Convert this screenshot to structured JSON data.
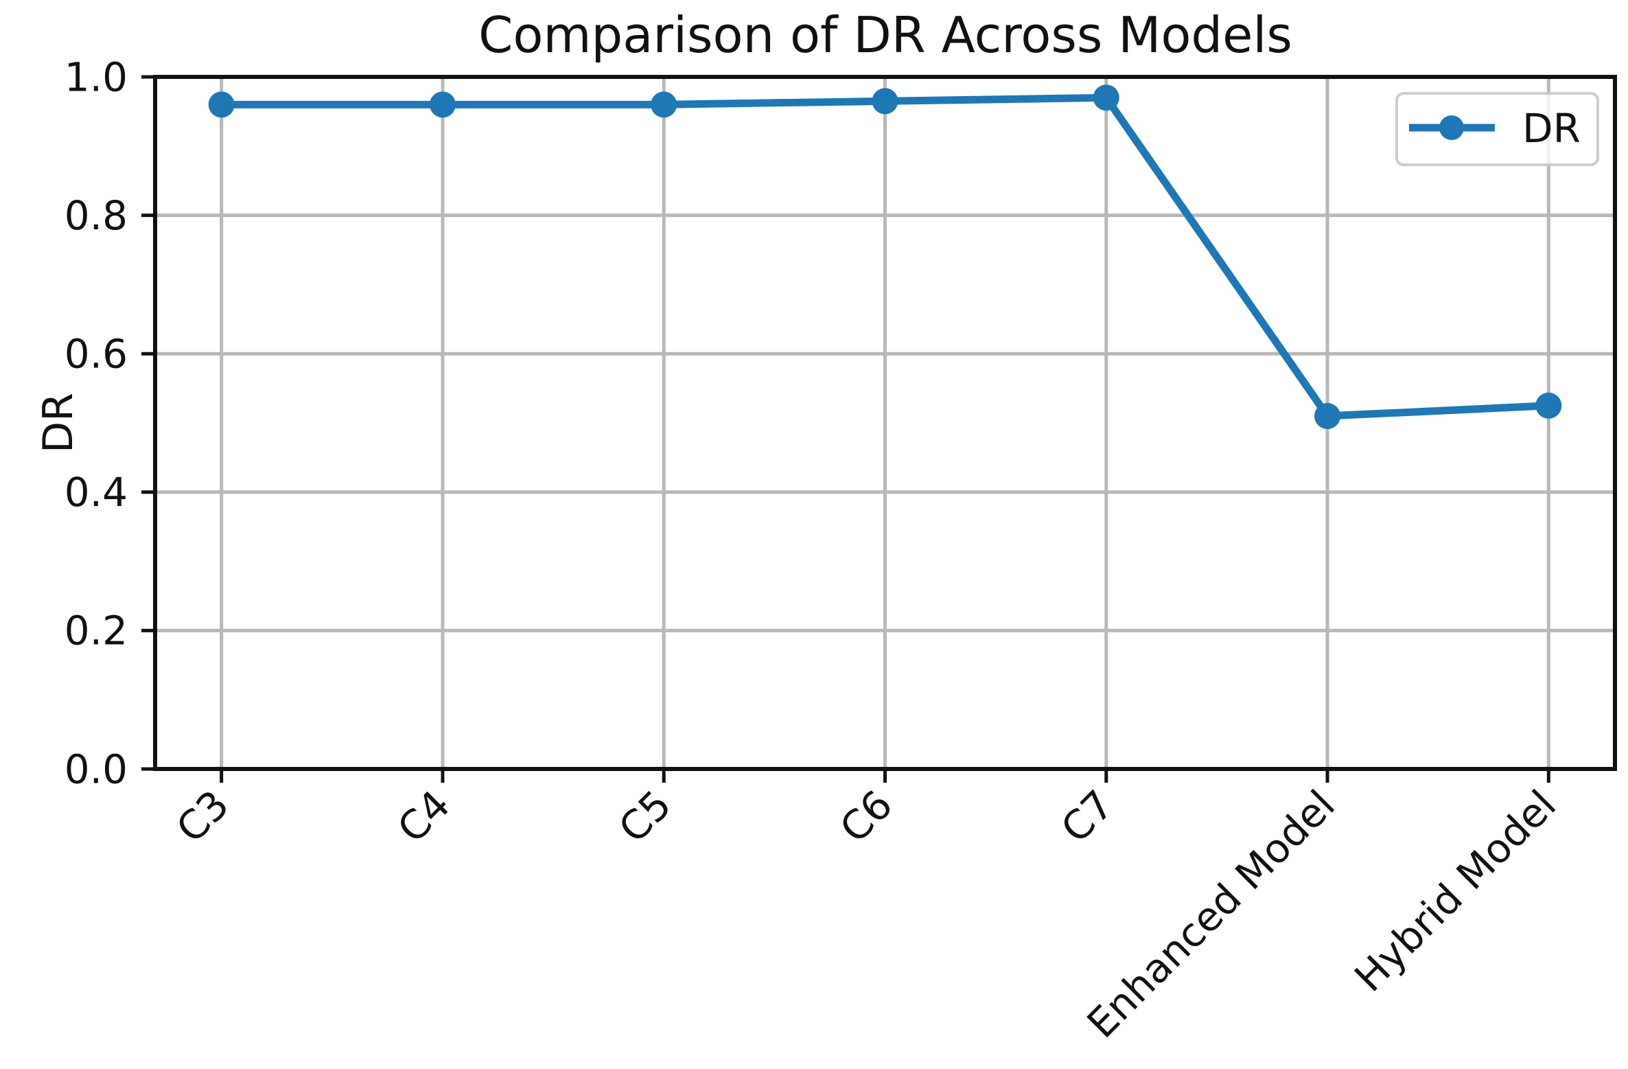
{
  "chart_data": {
    "type": "line",
    "title": "Comparison of DR Across Models",
    "xlabel": "",
    "ylabel": "DR",
    "categories": [
      "C3",
      "C4",
      "C5",
      "C6",
      "C7",
      "Enhanced Model",
      "Hybrid Model"
    ],
    "series": [
      {
        "name": "DR",
        "values": [
          0.96,
          0.96,
          0.96,
          0.965,
          0.97,
          0.51,
          0.525
        ]
      }
    ],
    "ylim": [
      0.0,
      1.0
    ],
    "yticks": [
      0.0,
      0.2,
      0.4,
      0.6,
      0.8,
      1.0
    ],
    "ytick_labels": [
      "0.0",
      "0.2",
      "0.4",
      "0.6",
      "0.8",
      "1.0"
    ],
    "xtick_rotation_deg": 45,
    "grid": true,
    "legend": {
      "position": "upper right",
      "entries": [
        "DR"
      ]
    },
    "colors": {
      "series": "#1f77b4",
      "grid": "#b8b8b8",
      "axis": "#111111",
      "text": "#111111",
      "legend_border": "#cccccc",
      "background": "#ffffff"
    }
  }
}
